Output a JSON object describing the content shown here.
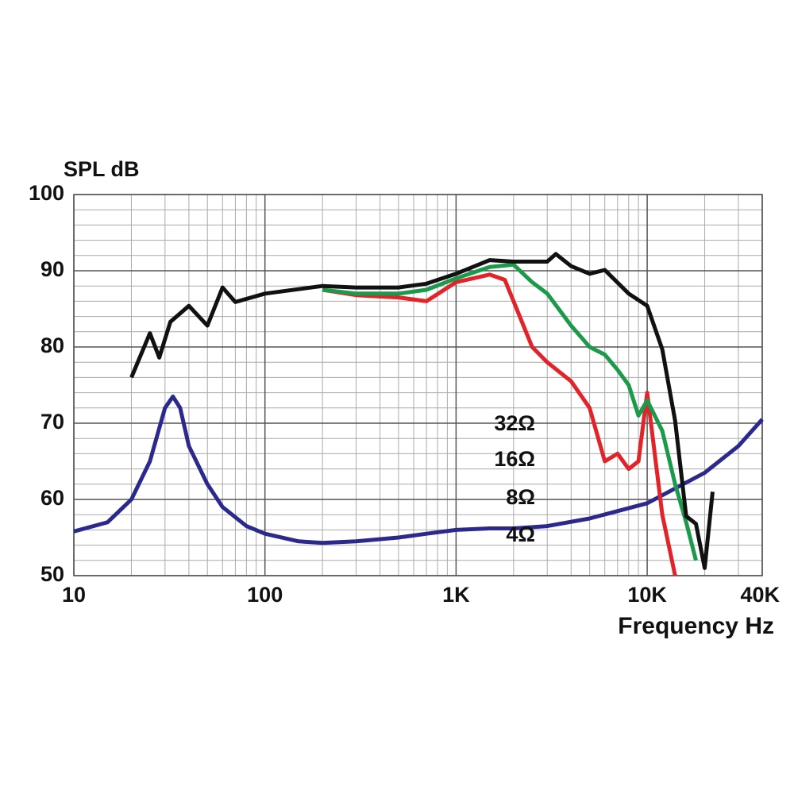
{
  "chart_data": {
    "type": "line",
    "y_label": "SPL dB",
    "x_label": "Frequency Hz",
    "log_x": true,
    "grid": true,
    "xlim": [
      10,
      40000
    ],
    "ylim": [
      50,
      100
    ],
    "xticks": [
      10,
      100,
      {
        "value": 1000,
        "label": "1K"
      },
      {
        "value": 10000,
        "label": "10K"
      },
      {
        "value": 40000,
        "label": "40K"
      }
    ],
    "yticks": [
      50,
      60,
      70,
      80,
      90,
      100
    ],
    "series": [
      {
        "color": "#2b2a8c",
        "x": [
          10,
          15,
          20,
          25,
          30,
          33,
          36,
          40,
          50,
          60,
          80,
          100,
          150,
          200,
          300,
          500,
          700,
          1000,
          1500,
          2000,
          3000,
          5000,
          10000,
          20000,
          30000,
          40000
        ],
        "values": [
          55.8,
          57,
          60,
          65,
          72,
          73.5,
          72,
          67,
          62,
          59,
          56.5,
          55.5,
          54.5,
          54.3,
          54.5,
          55,
          55.5,
          56,
          56.2,
          56.2,
          56.5,
          57.5,
          59.5,
          63.5,
          67,
          70.5
        ]
      },
      {
        "color": "#e0242a",
        "x": [
          200,
          300,
          500,
          700,
          1000,
          1500,
          1800,
          2000,
          2500,
          3000,
          4000,
          5000,
          6000,
          7000,
          8000,
          9000,
          10000,
          12000,
          14000
        ],
        "values": [
          87.5,
          86.8,
          86.5,
          86,
          88.5,
          89.5,
          88.8,
          86,
          80,
          78,
          75.5,
          72,
          65,
          66,
          64,
          65,
          74,
          58,
          50
        ]
      },
      {
        "color": "#1a9a4a",
        "x": [
          200,
          300,
          500,
          700,
          1000,
          1500,
          2000,
          2500,
          3000,
          4000,
          5000,
          6000,
          7000,
          8000,
          9000,
          10000,
          12000,
          14000,
          16000,
          18000
        ],
        "values": [
          87.5,
          87,
          87,
          87.5,
          89,
          90.5,
          90.8,
          88.5,
          87,
          82.8,
          80,
          79,
          77,
          75,
          71,
          73,
          69,
          62,
          57,
          52
        ]
      },
      {
        "color": "#111111",
        "x": [
          20,
          25,
          28,
          32,
          40,
          50,
          60,
          70,
          100,
          200,
          300,
          500,
          700,
          1000,
          1500,
          2000,
          3000,
          3330,
          4000,
          5000,
          6000,
          8000,
          10000,
          12000,
          14000,
          16000,
          18000,
          20000,
          22000
        ],
        "values": [
          76,
          81.8,
          78.6,
          83.3,
          85.4,
          82.8,
          87.8,
          85.9,
          87,
          88,
          87.8,
          87.8,
          88.3,
          89.6,
          91.4,
          91.2,
          91.2,
          92.2,
          90.6,
          89.6,
          90.1,
          87,
          85.4,
          79.7,
          70.3,
          57.8,
          56.8,
          51,
          61
        ]
      }
    ],
    "annotations": [
      "32Ω",
      "16Ω",
      "8Ω",
      "4Ω"
    ]
  }
}
